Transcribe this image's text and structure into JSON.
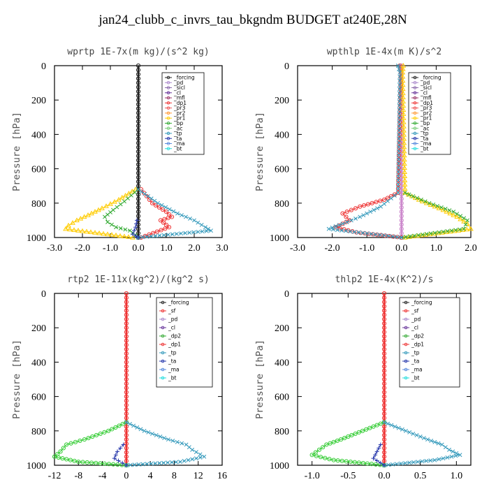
{
  "figure_title": "jan24_clubb_c_invrs_tau_bkgndm  BUDGET at240E,28N",
  "chart_data": [
    {
      "type": "line",
      "title": "wprtp  1E-7x(m kg)/(s^2 kg)",
      "ylabel": "Pressure [hPa]",
      "xlim": [
        -3.0,
        3.0
      ],
      "ylim": [
        1000,
        0
      ],
      "xticks": [
        "-3.0",
        "-2.0",
        "-1.0",
        "0.0",
        "1.0",
        "2.0",
        "3.0"
      ],
      "xtick_values": [
        -3,
        -2,
        -1,
        0,
        1,
        2,
        3
      ],
      "yticks": [
        "0",
        "200",
        "400",
        "600",
        "800",
        "1000"
      ],
      "ytick_values": [
        0,
        200,
        400,
        600,
        800,
        1000
      ],
      "legend_position": "top-right",
      "legend": [
        "_forcing",
        "_pd",
        "_sicl",
        "_cl",
        "_mfl",
        "_dp1",
        "_pr3",
        "_pr2",
        "_pr1",
        "_bp",
        "_ac",
        "_tp",
        "_ta",
        "_ma",
        "_bt"
      ],
      "series": [
        {
          "name": "_forcing",
          "color": "#222222",
          "marker": "o",
          "y": [
            0,
            300,
            600,
            800,
            1000
          ],
          "x": [
            0,
            0,
            0,
            0,
            0
          ]
        },
        {
          "name": "_pr1",
          "color": "#ffcc00",
          "marker": "triangle",
          "y": [
            720,
            780,
            830,
            870,
            900,
            930,
            950,
            1000
          ],
          "x": [
            -0.1,
            -0.7,
            -1.3,
            -1.8,
            -2.2,
            -2.5,
            -2.6,
            -0.2
          ]
        },
        {
          "name": "_bp",
          "color": "#33aa33",
          "marker": "x",
          "y": [
            720,
            790,
            840,
            880,
            910,
            940,
            960,
            1000
          ],
          "x": [
            0,
            -0.5,
            -0.9,
            -1.2,
            -1.1,
            -0.8,
            -0.3,
            0
          ]
        },
        {
          "name": "_dp1",
          "color": "#ee3333",
          "marker": "o",
          "y": [
            720,
            800,
            850,
            880,
            900,
            940,
            1000
          ],
          "x": [
            0.1,
            0.5,
            1.0,
            1.2,
            0.8,
            1.1,
            0.1
          ]
        },
        {
          "name": "_tp",
          "color": "#3399bb",
          "marker": "x",
          "y": [
            720,
            800,
            860,
            900,
            940,
            960,
            1000
          ],
          "x": [
            0,
            0.7,
            1.4,
            2.0,
            2.4,
            2.6,
            0
          ]
        },
        {
          "name": "_ta",
          "color": "#2233aa",
          "marker": "plus",
          "y": [
            900,
            940,
            980,
            1000
          ],
          "x": [
            -0.05,
            -0.1,
            -0.2,
            0
          ]
        }
      ]
    },
    {
      "type": "line",
      "title": "wpthlp  1E-4x(m K)/s^2",
      "ylabel": "Pressure [hPa]",
      "xlim": [
        -3.0,
        2.0
      ],
      "ylim": [
        1000,
        0
      ],
      "xticks": [
        "-3.0",
        "-2.0",
        "-1.0",
        "0.0",
        "1.0",
        "2.0"
      ],
      "xtick_values": [
        -3,
        -2,
        -1,
        0,
        1,
        2
      ],
      "yticks": [
        "0",
        "200",
        "400",
        "600",
        "800",
        "1000"
      ],
      "ytick_values": [
        0,
        200,
        400,
        600,
        800,
        1000
      ],
      "legend_position": "top-right",
      "legend": [
        "_forcing",
        "_pd",
        "_sicl",
        "_cl",
        "_mfl",
        "_dp1",
        "_pr3",
        "_pr2",
        "_pr1",
        "_bp",
        "_ac",
        "_tp",
        "_ta",
        "_ma",
        "_bt"
      ],
      "series": [
        {
          "name": "_forcing",
          "color": "#cc88cc",
          "marker": "o",
          "y": [
            0,
            300,
            600,
            800,
            1000
          ],
          "x": [
            0,
            0,
            0,
            0,
            0
          ]
        },
        {
          "name": "_dp1",
          "color": "#ee3333",
          "marker": "o",
          "y": [
            0,
            40,
            740,
            780,
            820,
            860,
            900,
            940,
            970,
            1000
          ],
          "x": [
            -0.05,
            -0.02,
            -0.1,
            -0.5,
            -1.2,
            -1.7,
            -1.5,
            -1.9,
            -1.3,
            0
          ]
        },
        {
          "name": "_pr1",
          "color": "#ffcc00",
          "marker": "triangle",
          "y": [
            0,
            40,
            740,
            790,
            840,
            880,
            920,
            950,
            1000
          ],
          "x": [
            0.05,
            0.03,
            0.1,
            0.6,
            1.2,
            1.6,
            1.9,
            2.0,
            0.1
          ]
        },
        {
          "name": "_bp",
          "color": "#33aa33",
          "marker": "x",
          "y": [
            740,
            800,
            850,
            900,
            950,
            1000
          ],
          "x": [
            0.1,
            0.8,
            1.5,
            1.9,
            1.8,
            0
          ]
        },
        {
          "name": "_tp",
          "color": "#3399bb",
          "marker": "x",
          "y": [
            0,
            40,
            740,
            820,
            880,
            920,
            950,
            1000
          ],
          "x": [
            -0.1,
            -0.05,
            -0.1,
            -0.6,
            -1.2,
            -1.7,
            -2.1,
            0
          ]
        }
      ]
    },
    {
      "type": "line",
      "title": "rtp2  1E-11x(kg^2)/(kg^2 s)",
      "ylabel": "Pressure [hPa]",
      "xlim": [
        -12,
        16
      ],
      "ylim": [
        1000,
        0
      ],
      "xticks": [
        "-12",
        "-8",
        "-4",
        "0",
        "4",
        "8",
        "12",
        "16"
      ],
      "xtick_values": [
        -12,
        -8,
        -4,
        0,
        4,
        8,
        12,
        16
      ],
      "yticks": [
        "0",
        "200",
        "400",
        "600",
        "800",
        "1000"
      ],
      "ytick_values": [
        0,
        200,
        400,
        600,
        800,
        1000
      ],
      "legend_position": "top-right",
      "legend": [
        "_forcing",
        "_sf",
        "_pd",
        "_cl",
        "_dp2",
        "_dp1",
        "_tp",
        "_ta",
        "_ma",
        "_bt"
      ],
      "series": [
        {
          "name": "_forcing",
          "color": "#ee3333",
          "marker": "o",
          "y": [
            0,
            300,
            600,
            800,
            1000
          ],
          "x": [
            0,
            0,
            0,
            0,
            0
          ]
        },
        {
          "name": "_dp1",
          "color": "#33cc33",
          "marker": "o",
          "y": [
            750,
            800,
            850,
            880,
            920,
            950,
            980,
            1000
          ],
          "x": [
            0,
            -3,
            -7,
            -10,
            -11,
            -12,
            -8,
            0
          ]
        },
        {
          "name": "_tp",
          "color": "#3399bb",
          "marker": "x",
          "y": [
            750,
            800,
            850,
            880,
            910,
            950,
            980,
            1000
          ],
          "x": [
            0,
            3,
            7,
            10,
            11,
            13,
            9,
            0
          ]
        },
        {
          "name": "_ta",
          "color": "#2233aa",
          "marker": "plus",
          "y": [
            880,
            920,
            960,
            1000
          ],
          "x": [
            -0.5,
            -1.5,
            -2,
            0
          ]
        }
      ]
    },
    {
      "type": "line",
      "title": "thlp2  1E-4x(K^2)/s",
      "ylabel": "Pressure [hPa]",
      "xlim": [
        -1.2,
        1.2
      ],
      "ylim": [
        1000,
        0
      ],
      "xticks": [
        "-1.0",
        "-0.5",
        "0.0",
        "0.5",
        "1.0"
      ],
      "xtick_values": [
        -1,
        -0.5,
        0,
        0.5,
        1
      ],
      "yticks": [
        "0",
        "200",
        "400",
        "600",
        "800",
        "1000"
      ],
      "ytick_values": [
        0,
        200,
        400,
        600,
        800,
        1000
      ],
      "legend_position": "top-right",
      "legend": [
        "_forcing",
        "_sf",
        "_pd",
        "_cl",
        "_dp2",
        "_dp1",
        "_tp",
        "_ta",
        "_ma",
        "_bt"
      ],
      "series": [
        {
          "name": "_forcing",
          "color": "#ee3333",
          "marker": "o",
          "y": [
            0,
            300,
            600,
            800,
            1000
          ],
          "x": [
            0,
            0,
            0,
            0,
            0
          ]
        },
        {
          "name": "_dp1",
          "color": "#33cc33",
          "marker": "o",
          "y": [
            750,
            800,
            850,
            880,
            910,
            940,
            970,
            1000
          ],
          "x": [
            0,
            -0.3,
            -0.6,
            -0.8,
            -0.9,
            -1.0,
            -0.7,
            0
          ]
        },
        {
          "name": "_tp",
          "color": "#3399bb",
          "marker": "x",
          "y": [
            750,
            800,
            850,
            880,
            910,
            940,
            970,
            1000
          ],
          "x": [
            0,
            0.3,
            0.6,
            0.8,
            0.9,
            1.05,
            0.7,
            0
          ]
        },
        {
          "name": "_ta",
          "color": "#2233aa",
          "marker": "plus",
          "y": [
            880,
            920,
            960,
            1000
          ],
          "x": [
            -0.05,
            -0.1,
            -0.15,
            0
          ]
        }
      ]
    }
  ]
}
